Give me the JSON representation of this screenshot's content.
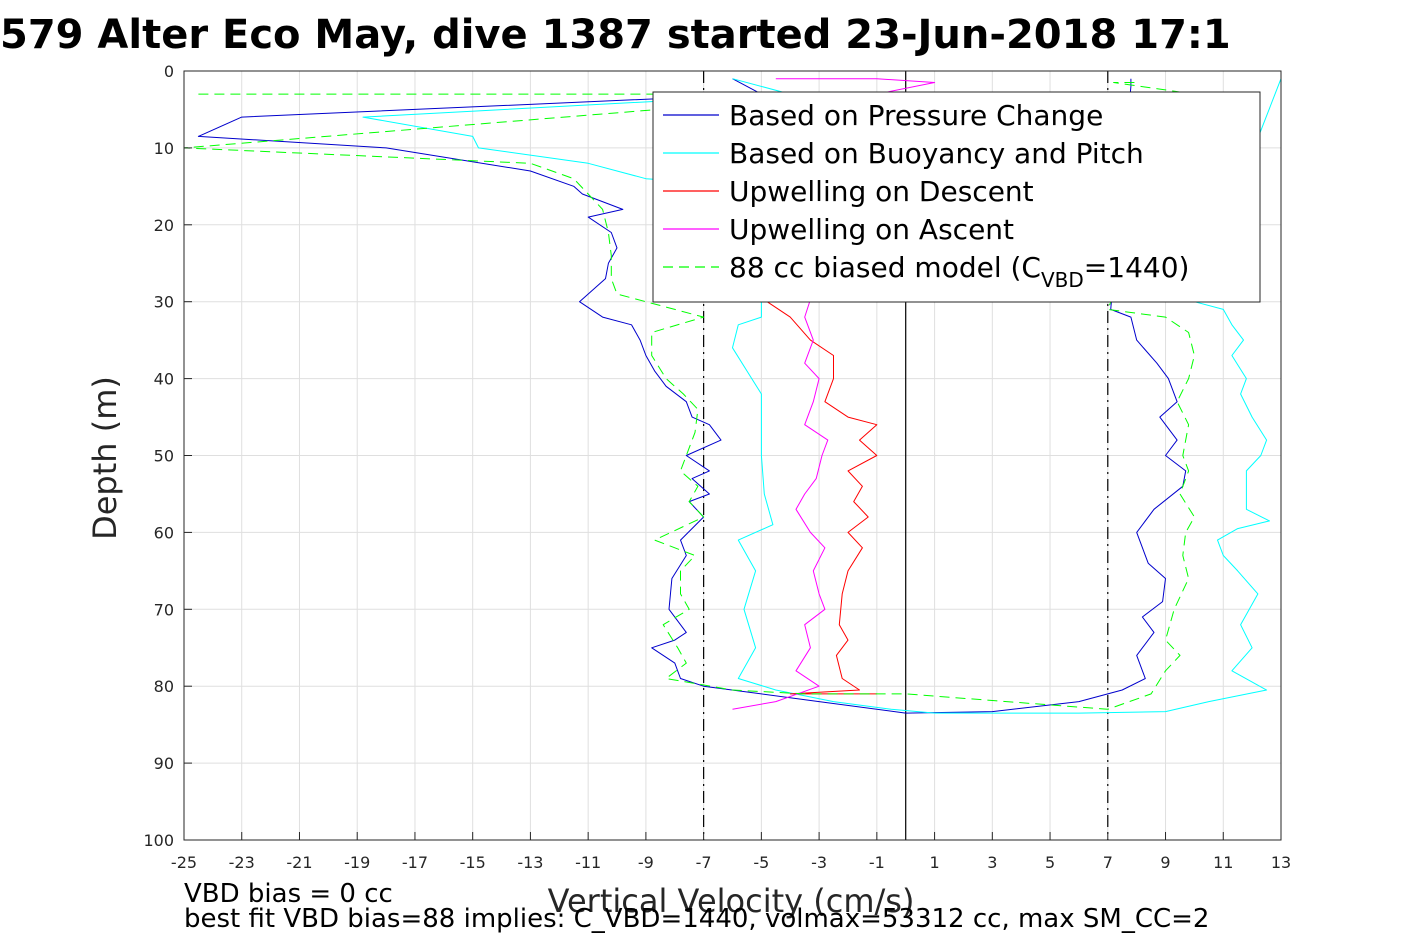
{
  "chart_data": {
    "type": "line",
    "title": "579 Alter Eco May, dive 1387 started 23-Jun-2018 17:1",
    "xlabel": "Vertical Velocity (cm/s)",
    "ylabel": "Depth (m)",
    "xlim": [
      -25,
      13
    ],
    "ylim": [
      0,
      100
    ],
    "y_reversed": true,
    "grid": true,
    "legend_position": "top-right",
    "x_ticks": [
      -25,
      -23,
      -21,
      -19,
      -17,
      -15,
      -13,
      -11,
      -9,
      -7,
      -5,
      -3,
      -1,
      1,
      3,
      5,
      7,
      9,
      11,
      13
    ],
    "y_ticks": [
      0,
      10,
      20,
      30,
      40,
      50,
      60,
      70,
      80,
      90,
      100
    ],
    "reference_lines": [
      {
        "x": -7,
        "style": "dashdot",
        "color": "#000000"
      },
      {
        "x": 0,
        "style": "solid",
        "color": "#000000"
      },
      {
        "x": 7,
        "style": "dashdot",
        "color": "#000000"
      }
    ],
    "legend": {
      "entries": [
        {
          "text": "Based on Pressure Change",
          "color": "#0000cc",
          "style": "solid"
        },
        {
          "text": "Based on Buoyancy and Pitch",
          "color": "#00ffff",
          "style": "solid"
        },
        {
          "text": "Upwelling on Descent",
          "color": "#ff0000",
          "style": "solid"
        },
        {
          "text": "Upwelling on Ascent",
          "color": "#ff00ff",
          "style": "solid"
        },
        {
          "text": "88 cc biased model (C",
          "sub": "VBD",
          "suffix": "=1440)",
          "color": "#00ff00",
          "style": "dashed"
        }
      ]
    },
    "series": [
      {
        "color": "#0000cc",
        "style": "solid",
        "points": [
          [
            -6,
            1
          ],
          [
            -5,
            3
          ],
          [
            -23,
            6
          ],
          [
            -24.5,
            8.5
          ],
          [
            -18,
            10
          ],
          [
            -13,
            13
          ],
          [
            -11.5,
            15
          ],
          [
            -11.2,
            16
          ],
          [
            -9.8,
            18
          ],
          [
            -11,
            19
          ],
          [
            -10.2,
            21
          ],
          [
            -10,
            23
          ],
          [
            -10.3,
            25
          ],
          [
            -10.4,
            27
          ],
          [
            -11.3,
            30
          ],
          [
            -10.5,
            32
          ],
          [
            -9.5,
            33
          ],
          [
            -9.2,
            35
          ],
          [
            -9.0,
            37
          ],
          [
            -8.7,
            39
          ],
          [
            -8.3,
            41
          ],
          [
            -7.6,
            43
          ],
          [
            -7.4,
            45
          ],
          [
            -6.8,
            46
          ],
          [
            -6.4,
            48
          ],
          [
            -7.6,
            50
          ],
          [
            -6.8,
            52
          ],
          [
            -7.4,
            53
          ],
          [
            -6.8,
            55
          ],
          [
            -7.5,
            56
          ],
          [
            -7.0,
            58
          ],
          [
            -7.8,
            61
          ],
          [
            -7.6,
            63
          ],
          [
            -8.1,
            66
          ],
          [
            -8.2,
            70
          ],
          [
            -7.6,
            73
          ],
          [
            -8.0,
            74
          ],
          [
            -8.8,
            75
          ],
          [
            -8.0,
            77
          ],
          [
            -7.8,
            79
          ],
          [
            -7.0,
            80
          ],
          [
            -5.0,
            81
          ],
          [
            -3.0,
            82
          ],
          [
            -1.0,
            83
          ],
          [
            0,
            83.5
          ],
          [
            3,
            83.3
          ],
          [
            6,
            82
          ],
          [
            7.5,
            80.5
          ],
          [
            8.3,
            79
          ],
          [
            8.0,
            76
          ],
          [
            8.6,
            73
          ],
          [
            8.2,
            71
          ],
          [
            8.9,
            69
          ],
          [
            9.0,
            66
          ],
          [
            8.4,
            64
          ],
          [
            8.0,
            60
          ],
          [
            8.6,
            57
          ],
          [
            9.6,
            54
          ],
          [
            9.7,
            52
          ],
          [
            9.0,
            50
          ],
          [
            9.4,
            48
          ],
          [
            8.8,
            45
          ],
          [
            9.4,
            43
          ],
          [
            9.1,
            40
          ],
          [
            8.7,
            38
          ],
          [
            8.0,
            35
          ],
          [
            7.8,
            32
          ],
          [
            7.1,
            31
          ],
          [
            7.8,
            2
          ],
          [
            7.8,
            1
          ]
        ]
      },
      {
        "color": "#00ffff",
        "style": "solid",
        "points": [
          [
            -6,
            1
          ],
          [
            -4,
            3
          ],
          [
            -18.8,
            6
          ],
          [
            -15,
            8.5
          ],
          [
            -14.8,
            10
          ],
          [
            -11,
            12
          ],
          [
            -9,
            14
          ],
          [
            -5,
            15
          ],
          [
            -5,
            32
          ],
          [
            -5.8,
            33
          ],
          [
            -6.0,
            36
          ],
          [
            -5.5,
            39
          ],
          [
            -5,
            42
          ],
          [
            -5,
            50
          ],
          [
            -4.9,
            55
          ],
          [
            -4.6,
            59
          ],
          [
            -5.8,
            61
          ],
          [
            -5.2,
            65
          ],
          [
            -5.6,
            70
          ],
          [
            -5.2,
            75
          ],
          [
            -5.8,
            79
          ],
          [
            -4.5,
            80.5
          ],
          [
            -2.5,
            82
          ],
          [
            -0.5,
            83
          ],
          [
            1,
            83.5
          ],
          [
            6,
            83.5
          ],
          [
            9,
            83.3
          ],
          [
            10.5,
            82
          ],
          [
            12.5,
            80.5
          ],
          [
            11.3,
            78
          ],
          [
            12.0,
            75
          ],
          [
            11.6,
            72
          ],
          [
            12.2,
            68
          ],
          [
            11.5,
            65
          ],
          [
            11.0,
            63
          ],
          [
            10.8,
            61
          ],
          [
            11.5,
            59.5
          ],
          [
            12.6,
            58.5
          ],
          [
            11.8,
            57
          ],
          [
            11.8,
            52
          ],
          [
            12.3,
            50
          ],
          [
            12.5,
            48
          ],
          [
            12.0,
            45
          ],
          [
            11.6,
            42
          ],
          [
            11.8,
            40
          ],
          [
            11.3,
            37
          ],
          [
            11.7,
            35
          ],
          [
            11.3,
            33
          ],
          [
            11.0,
            31
          ],
          [
            10,
            30
          ],
          [
            13,
            1
          ]
        ]
      },
      {
        "color": "#ff0000",
        "style": "solid",
        "points": [
          [
            -6,
            8.5
          ],
          [
            -4,
            8.5
          ],
          [
            -4.8,
            30
          ],
          [
            -4.0,
            32
          ],
          [
            -3.3,
            35
          ],
          [
            -2.5,
            37
          ],
          [
            -2.5,
            40
          ],
          [
            -2.8,
            43
          ],
          [
            -2.0,
            45
          ],
          [
            -1.0,
            46
          ],
          [
            -1.6,
            48
          ],
          [
            -1.0,
            50
          ],
          [
            -2.0,
            52
          ],
          [
            -1.5,
            54
          ],
          [
            -1.8,
            56
          ],
          [
            -1.3,
            58
          ],
          [
            -2.0,
            60
          ],
          [
            -1.5,
            62
          ],
          [
            -2.0,
            65
          ],
          [
            -2.2,
            68
          ],
          [
            -2.3,
            72
          ],
          [
            -2.0,
            74
          ],
          [
            -2.4,
            76
          ],
          [
            -2.2,
            79
          ],
          [
            -1.6,
            80.5
          ],
          [
            -4,
            81
          ],
          [
            -1,
            81
          ]
        ]
      },
      {
        "color": "#ff00ff",
        "style": "solid",
        "points": [
          [
            -4.5,
            1
          ],
          [
            -1,
            1
          ],
          [
            1,
            1.5
          ],
          [
            -1,
            3
          ],
          [
            -3.5,
            32
          ],
          [
            -3.2,
            35
          ],
          [
            -3.5,
            38
          ],
          [
            -3.0,
            40
          ],
          [
            -3.2,
            43
          ],
          [
            -3.5,
            46
          ],
          [
            -2.7,
            48
          ],
          [
            -2.9,
            50
          ],
          [
            -3.1,
            53
          ],
          [
            -3.5,
            55
          ],
          [
            -3.8,
            57
          ],
          [
            -3.3,
            60
          ],
          [
            -2.8,
            62
          ],
          [
            -3.2,
            65
          ],
          [
            -3.0,
            68
          ],
          [
            -2.8,
            70
          ],
          [
            -3.5,
            72
          ],
          [
            -3.3,
            75
          ],
          [
            -3.8,
            78
          ],
          [
            -3.0,
            80
          ],
          [
            -4.5,
            82
          ],
          [
            -6,
            83
          ]
        ]
      },
      {
        "color": "#00ff00",
        "style": "dashed",
        "points": [
          [
            -24.5,
            3
          ],
          [
            -2,
            3
          ],
          [
            -25,
            10
          ],
          [
            -13,
            12
          ],
          [
            -11.5,
            14
          ],
          [
            -11.0,
            16
          ],
          [
            -10.5,
            18
          ],
          [
            -10.3,
            21
          ],
          [
            -10.2,
            24
          ],
          [
            -10.2,
            27
          ],
          [
            -10.0,
            29
          ],
          [
            -8.0,
            31
          ],
          [
            -7,
            32
          ],
          [
            -8.8,
            34
          ],
          [
            -8.8,
            37
          ],
          [
            -8.3,
            40
          ],
          [
            -7.7,
            42
          ],
          [
            -7.2,
            44
          ],
          [
            -7.3,
            47
          ],
          [
            -7.5,
            49
          ],
          [
            -7.8,
            52
          ],
          [
            -7.2,
            54
          ],
          [
            -7.5,
            56
          ],
          [
            -7.0,
            58
          ],
          [
            -8.7,
            61
          ],
          [
            -7.3,
            63
          ],
          [
            -7.8,
            65
          ],
          [
            -7.8,
            68
          ],
          [
            -7.5,
            70
          ],
          [
            -8.4,
            72
          ],
          [
            -7.9,
            75
          ],
          [
            -7.6,
            77
          ],
          [
            -8.3,
            79
          ],
          [
            -6.0,
            80.5
          ],
          [
            -3.5,
            81
          ],
          [
            0,
            81
          ],
          [
            7,
            83
          ],
          [
            8.5,
            81
          ],
          [
            9.0,
            78
          ],
          [
            9.5,
            76
          ],
          [
            9.0,
            74
          ],
          [
            9.3,
            70
          ],
          [
            9.8,
            66
          ],
          [
            9.6,
            63
          ],
          [
            9.7,
            60
          ],
          [
            10.0,
            58
          ],
          [
            9.5,
            55
          ],
          [
            9.8,
            52
          ],
          [
            9.6,
            50
          ],
          [
            9.8,
            46
          ],
          [
            9.4,
            43
          ],
          [
            9.8,
            40
          ],
          [
            10.0,
            37
          ],
          [
            9.8,
            34
          ],
          [
            9.0,
            32
          ],
          [
            7,
            31
          ],
          [
            10,
            3
          ],
          [
            7.2,
            1.5
          ],
          [
            8,
            1.5
          ]
        ]
      }
    ]
  },
  "notes": {
    "line1": "VBD bias = 0 cc",
    "line2": "best fit VBD bias=88 implies: C_VBD=1440, volmax=53312 cc, max SM_CC=2"
  }
}
